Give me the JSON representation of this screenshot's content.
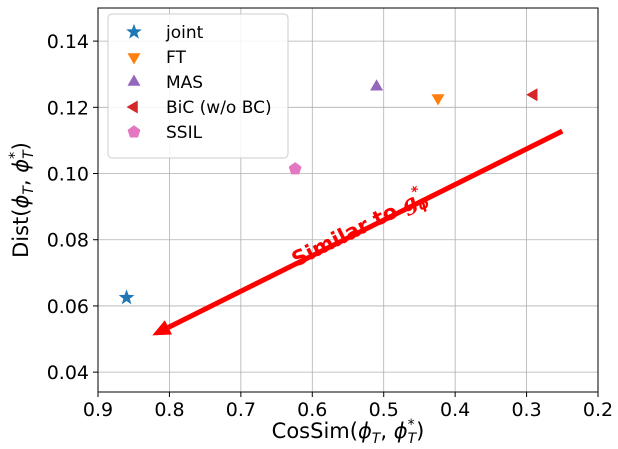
{
  "chart_data": {
    "type": "scatter",
    "title": "",
    "xlabel": "CosSim(φT, φ*T)",
    "ylabel": "Dist(φT, φ*T)",
    "xlim": [
      0.9,
      0.2
    ],
    "ylim": [
      0.034,
      0.15
    ],
    "x_inverted": true,
    "grid": true,
    "legend_position": "top-left",
    "xticks": [
      0.9,
      0.8,
      0.7,
      0.6,
      0.5,
      0.4,
      0.3,
      0.2
    ],
    "xtick_labels": [
      "0.9",
      "0.8",
      "0.7",
      "0.6",
      "0.5",
      "0.4",
      "0.3",
      "0.2"
    ],
    "yticks": [
      0.04,
      0.06,
      0.08,
      0.1,
      0.12,
      0.14
    ],
    "ytick_labels": [
      "0.04",
      "0.06",
      "0.08",
      "0.10",
      "0.12",
      "0.14"
    ],
    "series": [
      {
        "name": "joint",
        "marker": "star",
        "color": "#1f77b4",
        "x": 0.86,
        "y": 0.0625
      },
      {
        "name": "FT",
        "marker": "triangle-down",
        "color": "#ff7f0e",
        "x": 0.424,
        "y": 0.1228
      },
      {
        "name": "MAS",
        "marker": "triangle-up",
        "color": "#9467bd",
        "x": 0.51,
        "y": 0.1262
      },
      {
        "name": "BiC (w/o BC)",
        "marker": "triangle-left",
        "color": "#d62728",
        "x": 0.29,
        "y": 0.1238
      },
      {
        "name": "SSIL",
        "marker": "pentagon",
        "color": "#e377c2",
        "x": 0.624,
        "y": 0.1014
      }
    ],
    "annotation": {
      "text": "Similar to ",
      "math": "g",
      "math_sup": "*",
      "math_sub": "ϕ",
      "color": "#ff0000",
      "arrow_from": {
        "x": 0.25,
        "y": 0.1128
      },
      "arrow_to": {
        "x": 0.824,
        "y": 0.0511
      }
    }
  }
}
